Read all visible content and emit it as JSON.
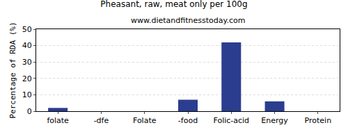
{
  "chart_data": {
    "type": "bar",
    "title": "Pheasant, raw, meat only per 100g",
    "subtitle": "www.dietandfitnesstoday.com",
    "y_label": "Percentage of RDA (%)",
    "categories": [
      "folate",
      "-dfe",
      "Folate",
      "-food",
      "Folic-acid",
      "Energy",
      "Protein"
    ],
    "values": [
      2,
      0,
      0,
      7,
      42,
      6,
      0
    ],
    "color": "#2b3d8f",
    "ylim": [
      0,
      50
    ],
    "yticks": [
      0,
      10,
      20,
      30,
      40,
      50
    ],
    "grid": true
  }
}
